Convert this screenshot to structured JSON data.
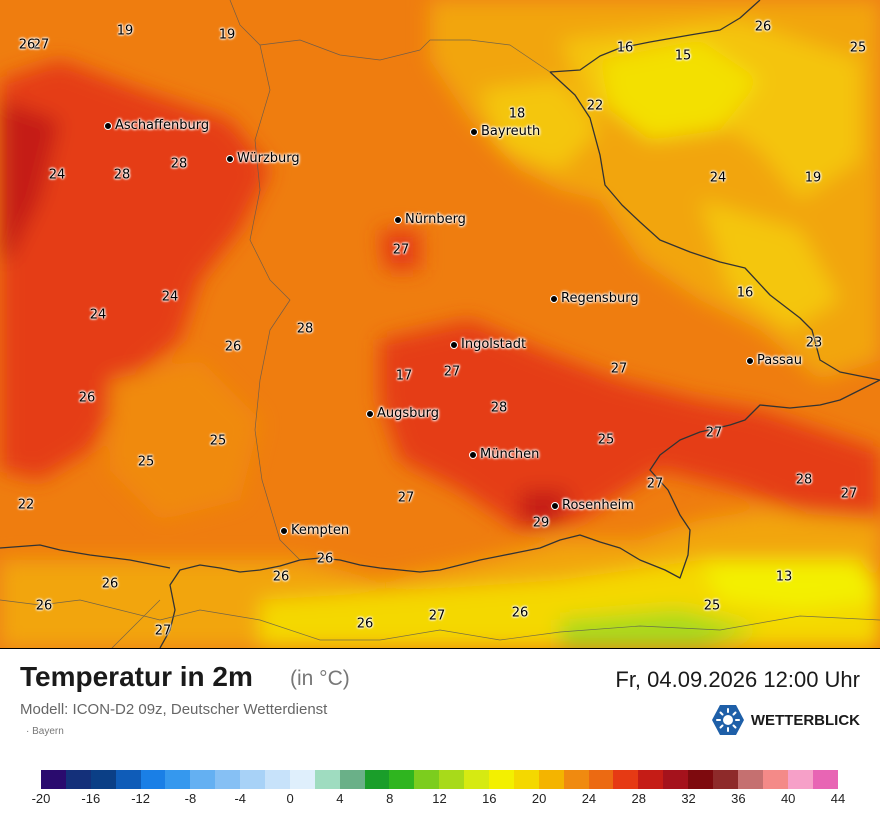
{
  "map": {
    "region": "Bayern",
    "cities": [
      {
        "name": "Aschaffenburg"
      },
      {
        "name": "Würzburg"
      },
      {
        "name": "Bayreuth"
      },
      {
        "name": "Nürnberg"
      },
      {
        "name": "Regensburg"
      },
      {
        "name": "Ingolstadt"
      },
      {
        "name": "Passau"
      },
      {
        "name": "Augsburg"
      },
      {
        "name": "München"
      },
      {
        "name": "Rosenheim"
      },
      {
        "name": "Kempten"
      }
    ],
    "temperature_labels": [
      "27",
      "19",
      "19",
      "26",
      "25",
      "16",
      "15",
      "22",
      "18",
      "24",
      "28",
      "28",
      "24",
      "19",
      "27",
      "24",
      "16",
      "24",
      "28",
      "26",
      "23",
      "17",
      "27",
      "27",
      "26",
      "28",
      "25",
      "25",
      "25",
      "27",
      "22",
      "27",
      "27",
      "28",
      "27",
      "27",
      "29",
      "26",
      "26",
      "13",
      "26",
      "26",
      "25",
      "26",
      "27",
      "26",
      "26"
    ]
  },
  "footer": {
    "title": "Temperatur in 2m",
    "unit": "(in °C)",
    "model": "Modell: ICON-D2 09z, Deutscher Wetterdienst",
    "region_note": "· Bayern",
    "datetime": "Fr, 04.09.2026 12:00 Uhr",
    "brand": "WETTERBLICK",
    "brand_icon": "wetterblick-logo-icon"
  },
  "legend": {
    "colors": [
      "#2a0b6e",
      "#14307a",
      "#0b3f86",
      "#0f5cb8",
      "#1a7fe6",
      "#3598ee",
      "#64b0f2",
      "#86c0f4",
      "#a8d2f7",
      "#c7e2fa",
      "#dfeffc",
      "#9fdcc0",
      "#6ab088",
      "#1a9e2a",
      "#2fb51f",
      "#7ccd1e",
      "#a8da1a",
      "#d6ea12",
      "#f3f000",
      "#f4d800",
      "#f4b400",
      "#f08a10",
      "#ec6a12",
      "#e63a14",
      "#c51c16",
      "#a5121c",
      "#7e0a0e",
      "#8e2a2a",
      "#c57070",
      "#f48a88",
      "#f6a0c8",
      "#e865b4"
    ],
    "ticks": [
      "-20",
      "-16",
      "-12",
      "-8",
      "-4",
      "0",
      "4",
      "8",
      "12",
      "16",
      "20",
      "24",
      "28",
      "32",
      "36",
      "40",
      "44"
    ]
  }
}
